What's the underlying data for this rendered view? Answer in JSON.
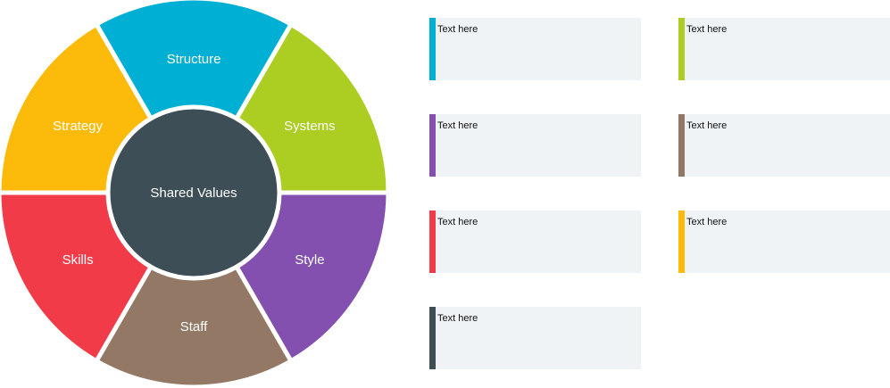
{
  "diagram": {
    "center": {
      "label": "Shared Values",
      "color": "#3d4e57"
    },
    "segments": [
      {
        "label": "Structure",
        "color": "#00afd4"
      },
      {
        "label": "Systems",
        "color": "#accd21"
      },
      {
        "label": "Style",
        "color": "#8350b0"
      },
      {
        "label": "Staff",
        "color": "#937965"
      },
      {
        "label": "Skills",
        "color": "#f23b49"
      },
      {
        "label": "Strategy",
        "color": "#fcbb0a"
      }
    ]
  },
  "text_boxes": [
    {
      "text": "Text here",
      "color": "#00afd4"
    },
    {
      "text": "Text here",
      "color": "#accd21"
    },
    {
      "text": "Text here",
      "color": "#8350b0"
    },
    {
      "text": "Text here",
      "color": "#937965"
    },
    {
      "text": "Text here",
      "color": "#f23b49"
    },
    {
      "text": "Text here",
      "color": "#fcbb0a"
    },
    {
      "text": "Text here",
      "color": "#3d4e57"
    }
  ]
}
